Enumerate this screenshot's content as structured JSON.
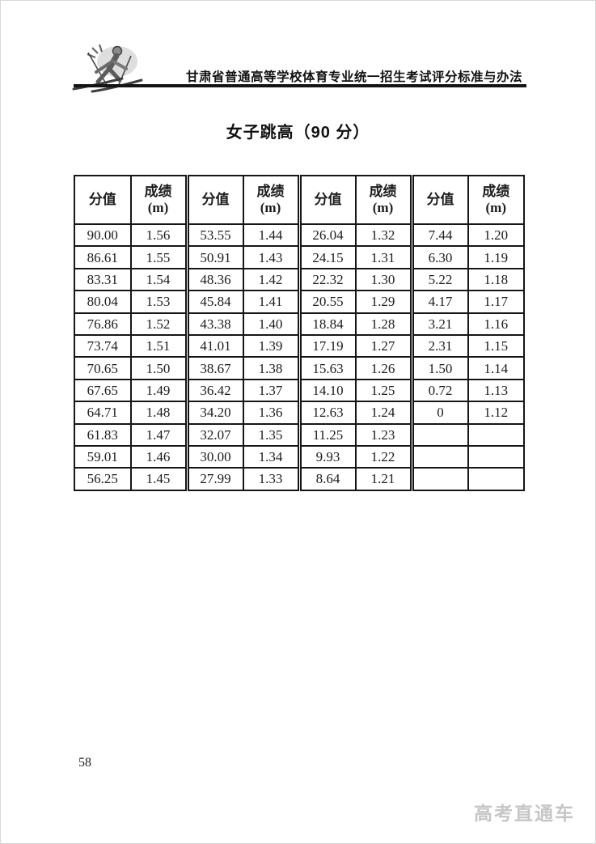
{
  "header": {
    "logo_icon": "skier-clipart",
    "text": "甘肃省普通高等学校体育专业统一招生考试评分标准与办法"
  },
  "title": "女子跳高（90 分）",
  "table": {
    "score_header": "分值",
    "result_header_line1": "成绩",
    "result_header_line2": "(m)",
    "pair_count": 4,
    "rows": [
      [
        "90.00",
        "1.56",
        "53.55",
        "1.44",
        "26.04",
        "1.32",
        "7.44",
        "1.20"
      ],
      [
        "86.61",
        "1.55",
        "50.91",
        "1.43",
        "24.15",
        "1.31",
        "6.30",
        "1.19"
      ],
      [
        "83.31",
        "1.54",
        "48.36",
        "1.42",
        "22.32",
        "1.30",
        "5.22",
        "1.18"
      ],
      [
        "80.04",
        "1.53",
        "45.84",
        "1.41",
        "20.55",
        "1.29",
        "4.17",
        "1.17"
      ],
      [
        "76.86",
        "1.52",
        "43.38",
        "1.40",
        "18.84",
        "1.28",
        "3.21",
        "1.16"
      ],
      [
        "73.74",
        "1.51",
        "41.01",
        "1.39",
        "17.19",
        "1.27",
        "2.31",
        "1.15"
      ],
      [
        "70.65",
        "1.50",
        "38.67",
        "1.38",
        "15.63",
        "1.26",
        "1.50",
        "1.14"
      ],
      [
        "67.65",
        "1.49",
        "36.42",
        "1.37",
        "14.10",
        "1.25",
        "0.72",
        "1.13"
      ],
      [
        "64.71",
        "1.48",
        "34.20",
        "1.36",
        "12.63",
        "1.24",
        "0",
        "1.12"
      ],
      [
        "61.83",
        "1.47",
        "32.07",
        "1.35",
        "11.25",
        "1.23",
        "",
        ""
      ],
      [
        "59.01",
        "1.46",
        "30.00",
        "1.34",
        "9.93",
        "1.22",
        "",
        ""
      ],
      [
        "56.25",
        "1.45",
        "27.99",
        "1.33",
        "8.64",
        "1.21",
        "",
        ""
      ]
    ]
  },
  "footer": {
    "page_number": "58",
    "watermark": "高考直通车"
  }
}
